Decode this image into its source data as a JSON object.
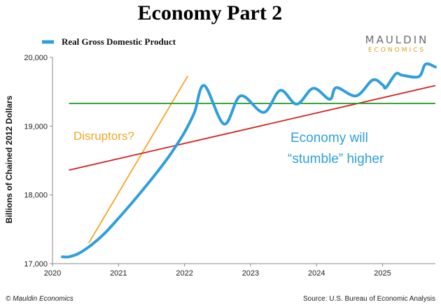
{
  "title": "Economy Part 2",
  "logo": {
    "top": "MAULDIN",
    "bottom": "ECONOMICS",
    "top_color": "#6d6e71",
    "bottom_color": "#d9a21b"
  },
  "footer": {
    "left": "© Mauldin Economics",
    "right": "Source: U.S. Bureau of Economic Analysis"
  },
  "colors": {
    "gdp": "#2f9fdc",
    "orange": "#f5a623",
    "red": "#d42020",
    "green": "#1f9a1f",
    "axis": "#888888"
  },
  "annotations": {
    "disruptors": "Disruptors?",
    "economy_line1": "Economy will",
    "economy_line2": "“stumble” higher"
  },
  "chart_data": {
    "type": "line",
    "title": "Economy Part 2",
    "ylabel": "Billions of Chained 2012 Dollars",
    "xlabel": "",
    "xlim": [
      2020,
      2025.8
    ],
    "ylim": [
      17000,
      20000
    ],
    "x_ticks": [
      2020,
      2021,
      2022,
      2023,
      2024,
      2025
    ],
    "x_tick_labels": [
      "2020",
      "2021",
      "2022",
      "2023",
      "2024",
      "2025"
    ],
    "y_ticks": [
      17000,
      18000,
      19000,
      20000
    ],
    "y_tick_labels": [
      "17,000",
      "18,000",
      "19,000",
      "20,000"
    ],
    "grid": false,
    "legend": {
      "position": "top-left",
      "entries": [
        "Real Gross Domestic Product"
      ]
    },
    "series": [
      {
        "name": "Real Gross Domestic Product",
        "x": [
          2020.15,
          2020.25,
          2020.4,
          2020.6,
          2020.8,
          2021.0,
          2021.2,
          2021.4,
          2021.6,
          2021.8,
          2022.0,
          2022.15,
          2022.3,
          2022.6,
          2022.85,
          2023.2,
          2023.45,
          2023.7,
          2023.95,
          2024.2,
          2024.3,
          2024.6,
          2024.85,
          2025.0,
          2025.05,
          2025.2,
          2025.3,
          2025.55,
          2025.65,
          2025.8
        ],
        "y": [
          17100,
          17100,
          17150,
          17280,
          17450,
          17660,
          17880,
          18110,
          18350,
          18610,
          18910,
          19200,
          19590,
          19030,
          19440,
          19200,
          19520,
          19320,
          19550,
          19390,
          19560,
          19440,
          19670,
          19600,
          19560,
          19760,
          19740,
          19720,
          19900,
          19860
        ]
      }
    ],
    "overlay_lines": [
      {
        "label": "Disruptors?",
        "color": "orange",
        "x": [
          2020.55,
          2022.05
        ],
        "y": [
          17300,
          19730
        ]
      },
      {
        "label": "",
        "color": "red",
        "x": [
          2020.25,
          2025.8
        ],
        "y": [
          18360,
          19590
        ]
      },
      {
        "label": "",
        "color": "green",
        "x": [
          2020.25,
          2025.8
        ],
        "y": [
          19330,
          19330
        ]
      }
    ]
  }
}
